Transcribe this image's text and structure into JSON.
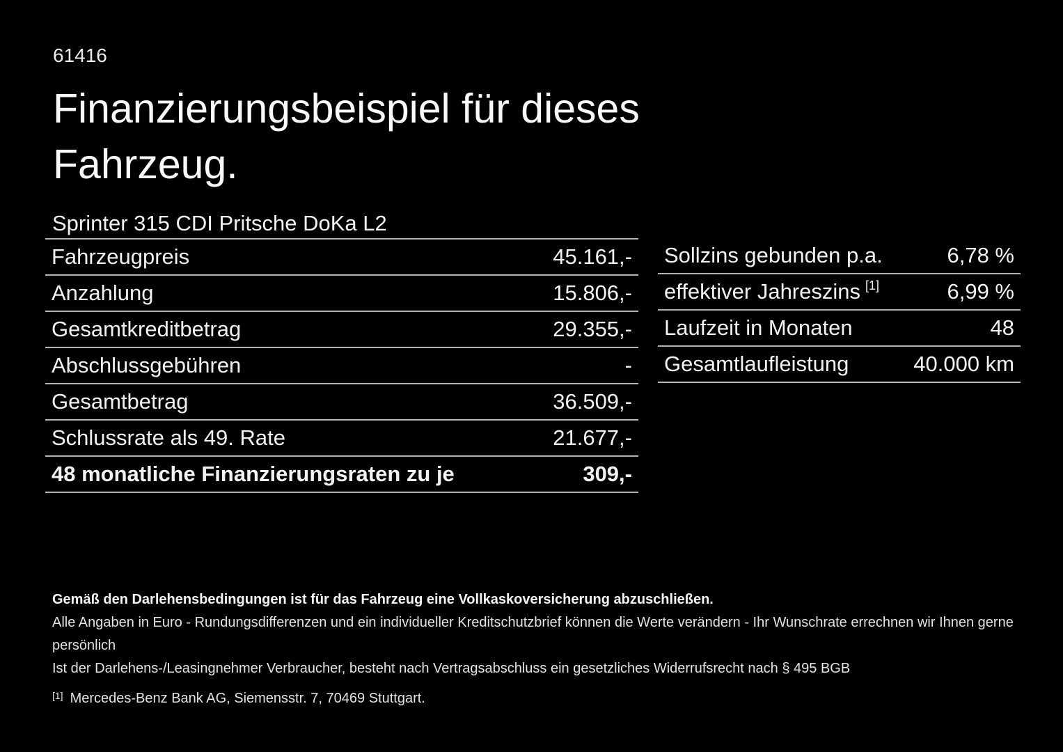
{
  "header": {
    "code": "61416",
    "title_line1": "Finanzierungsbeispiel für dieses",
    "title_line2": "Fahrzeug."
  },
  "vehicle": {
    "name": "Sprinter 315 CDI Pritsche DoKa L2"
  },
  "finance_table": {
    "rows": [
      {
        "label": "Fahrzeugpreis",
        "value": "45.161,-"
      },
      {
        "label": "Anzahlung",
        "value": "15.806,-"
      },
      {
        "label": "Gesamtkreditbetrag",
        "value": "29.355,-"
      },
      {
        "label": "Abschlussgebühren",
        "value": "-"
      },
      {
        "label": "Gesamtbetrag",
        "value": "36.509,-"
      },
      {
        "label": "Schlussrate als 49. Rate",
        "value": "21.677,-"
      },
      {
        "label": "48 monatliche Finanzierungsraten zu je",
        "value": "309,-"
      }
    ]
  },
  "conditions_table": {
    "rows": [
      {
        "label": "Sollzins gebunden p.a.",
        "value": "6,78 %"
      },
      {
        "label": "effektiver Jahreszins",
        "sup": "[1]",
        "value": "6,99 %"
      },
      {
        "label": "Laufzeit in Monaten",
        "value": "48"
      },
      {
        "label": "Gesamtlaufleistung",
        "value": "40.000 km"
      }
    ]
  },
  "footer": {
    "line1": "Gemäß den Darlehensbedingungen ist für das Fahrzeug eine Vollkaskoversicherung abzuschließen.",
    "line2": "Alle Angaben in Euro - Rundungsdifferenzen und ein individueller Kreditschutzbrief können die Werte verändern - Ihr Wunschrate errechnen wir Ihnen gerne persönlich",
    "line3": "Ist der Darlehens-/Leasingnehmer Verbraucher, besteht nach Vertragsabschluss ein gesetzliches Widerrufsrecht nach § 495 BGB",
    "footnote_marker": "[1]",
    "footnote_text": "Mercedes-Benz Bank AG, Siemensstr. 7, 70469 Stuttgart."
  },
  "colors": {
    "background": "#000000",
    "text": "#f2f2f2",
    "separator": "#b4b4b4"
  }
}
